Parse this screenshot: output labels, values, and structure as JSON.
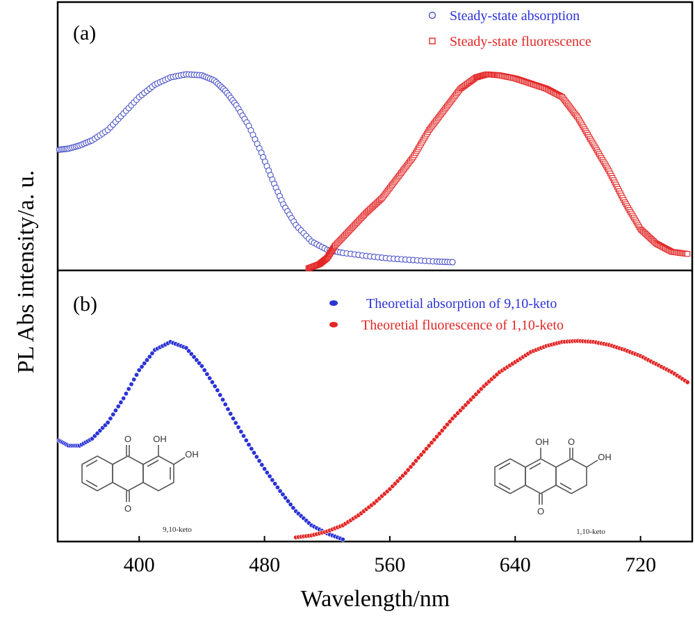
{
  "chart_data": {
    "type": "scatter",
    "xlabel": "Wavelength/nm",
    "ylabel": "PL Abs intensity/a. u.",
    "xlim": [
      348,
      753
    ],
    "x_ticks": [
      400,
      480,
      560,
      640,
      720
    ],
    "panels": [
      {
        "label": "(a)",
        "ylim": [
          0,
          1
        ],
        "series": [
          {
            "name": "Steady-state absorption",
            "marker": "open-circle",
            "color": "#4a52c8",
            "x": [
              349,
              355,
              362,
              370,
              380,
              390,
              400,
              410,
              420,
              430,
              440,
              448,
              455,
              462,
              470,
              478,
              485,
              492,
              500,
              510,
              520,
              530,
              545,
              560,
              575,
              590,
              600
            ],
            "y": [
              0.585,
              0.59,
              0.605,
              0.63,
              0.68,
              0.76,
              0.84,
              0.9,
              0.935,
              0.95,
              0.945,
              0.92,
              0.87,
              0.8,
              0.7,
              0.57,
              0.44,
              0.32,
              0.22,
              0.14,
              0.1,
              0.085,
              0.07,
              0.058,
              0.05,
              0.043,
              0.04
            ]
          },
          {
            "name": "Steady-state fluorescence",
            "marker": "open-square",
            "color": "#e32626",
            "x": [
              508,
              515,
              520,
              525,
              535,
              545,
              555,
              565,
              575,
              585,
              595,
              605,
              615,
              622,
              630,
              640,
              650,
              660,
              670,
              680,
              690,
              700,
              710,
              720,
              730,
              740,
              750
            ],
            "y": [
              0.01,
              0.03,
              0.06,
              0.12,
              0.2,
              0.28,
              0.35,
              0.45,
              0.55,
              0.68,
              0.78,
              0.88,
              0.935,
              0.95,
              0.945,
              0.93,
              0.905,
              0.88,
              0.84,
              0.74,
              0.61,
              0.48,
              0.33,
              0.2,
              0.13,
              0.09,
              0.08
            ]
          }
        ]
      },
      {
        "label": "(b)",
        "ylim": [
          0,
          1
        ],
        "series": [
          {
            "name": "Theoretial absorption of 9,10-keto",
            "marker": "filled-circle",
            "color": "#2b33d6",
            "x": [
              349,
              355,
              362,
              370,
              380,
              390,
              400,
              410,
              420,
              430,
              440,
              450,
              460,
              470,
              480,
              490,
              500,
              510,
              520,
              530
            ],
            "y": [
              0.49,
              0.465,
              0.465,
              0.5,
              0.58,
              0.7,
              0.84,
              0.94,
              0.98,
              0.95,
              0.86,
              0.74,
              0.6,
              0.47,
              0.35,
              0.24,
              0.14,
              0.07,
              0.03,
              0.0
            ]
          },
          {
            "name": "Theoretial fluorescence of 1,10-keto",
            "marker": "filled-circle",
            "color": "#e32626",
            "x": [
              500,
              510,
              520,
              530,
              540,
              550,
              560,
              570,
              580,
              590,
              600,
              610,
              620,
              630,
              640,
              650,
              660,
              670,
              680,
              690,
              700,
              710,
              720,
              730,
              740,
              750
            ],
            "y": [
              0.01,
              0.02,
              0.04,
              0.07,
              0.12,
              0.18,
              0.25,
              0.33,
              0.42,
              0.51,
              0.6,
              0.68,
              0.76,
              0.83,
              0.88,
              0.93,
              0.96,
              0.98,
              0.985,
              0.98,
              0.965,
              0.94,
              0.91,
              0.87,
              0.83,
              0.78
            ]
          }
        ]
      }
    ]
  },
  "structures": [
    {
      "name": "9,10-keto",
      "label": "9,10-keto",
      "groups": [
        "O",
        "OH",
        "OH",
        "O"
      ]
    },
    {
      "name": "1,10-keto",
      "label": "1,10-keto",
      "groups": [
        "OH",
        "O",
        "OH",
        "O"
      ]
    }
  ]
}
